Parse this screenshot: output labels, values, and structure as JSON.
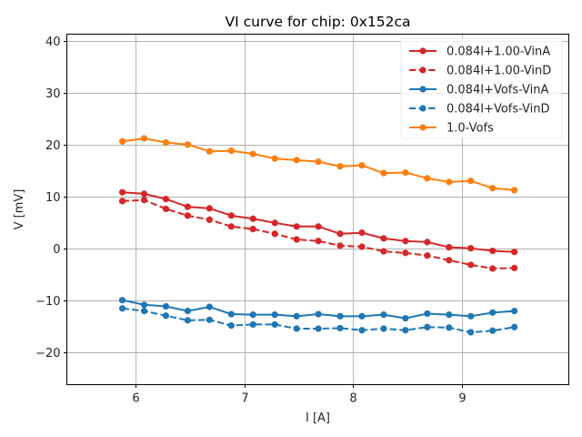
{
  "chart_data": {
    "type": "line",
    "title": "VI curve for chip: 0x152ca",
    "xlabel": "I [A]",
    "ylabel": "V [mV]",
    "xlim": [
      5.37,
      9.98
    ],
    "ylim": [
      -26.2,
      41.4
    ],
    "xticks": [
      6,
      7,
      8,
      9
    ],
    "xtick_labels": [
      "6",
      "7",
      "8",
      "9"
    ],
    "yticks": [
      -20,
      -10,
      0,
      10,
      20,
      30,
      40
    ],
    "ytick_labels": [
      "−20",
      "−10",
      "0",
      "10",
      "20",
      "30",
      "40"
    ],
    "grid": true,
    "legend_position": "top-right",
    "x": [
      5.88,
      6.08,
      6.28,
      6.48,
      6.68,
      6.88,
      7.08,
      7.28,
      7.48,
      7.68,
      7.88,
      8.08,
      8.28,
      8.48,
      8.68,
      8.88,
      9.08,
      9.28,
      9.48
    ],
    "series": [
      {
        "name": "0.084I+1.00-VinA",
        "color": "#d62728",
        "linestyle": "solid",
        "values": [
          10.9,
          10.6,
          9.6,
          8.1,
          7.8,
          6.4,
          5.8,
          5.0,
          4.3,
          4.3,
          2.9,
          3.1,
          2.0,
          1.5,
          1.3,
          0.3,
          0.1,
          -0.4,
          -0.6
        ]
      },
      {
        "name": "0.084I+1.00-VinD",
        "color": "#d62728",
        "linestyle": "dashed",
        "values": [
          9.2,
          9.4,
          7.7,
          6.4,
          5.6,
          4.3,
          3.8,
          2.9,
          1.8,
          1.5,
          0.6,
          0.4,
          -0.5,
          -0.8,
          -1.3,
          -2.2,
          -3.1,
          -3.8,
          -3.7
        ]
      },
      {
        "name": "0.084I+Vofs-VinA",
        "color": "#1f77b4",
        "linestyle": "solid",
        "values": [
          -9.9,
          -10.8,
          -11.1,
          -12.0,
          -11.2,
          -12.6,
          -12.7,
          -12.7,
          -13.0,
          -12.6,
          -13.0,
          -13.0,
          -12.7,
          -13.4,
          -12.5,
          -12.7,
          -13.0,
          -12.3,
          -12.0
        ]
      },
      {
        "name": "0.084I+Vofs-VinD",
        "color": "#1f77b4",
        "linestyle": "dashed",
        "values": [
          -11.5,
          -12.0,
          -12.9,
          -13.8,
          -13.7,
          -14.8,
          -14.6,
          -14.6,
          -15.4,
          -15.4,
          -15.3,
          -15.7,
          -15.4,
          -15.7,
          -15.1,
          -15.2,
          -16.1,
          -15.8,
          -15.1
        ]
      },
      {
        "name": "1.0-Vofs",
        "color": "#ff7f0e",
        "linestyle": "solid",
        "values": [
          20.7,
          21.3,
          20.5,
          20.1,
          18.8,
          18.9,
          18.3,
          17.4,
          17.1,
          16.8,
          15.9,
          16.1,
          14.6,
          14.7,
          13.6,
          12.9,
          13.1,
          11.7,
          11.3
        ]
      }
    ]
  }
}
